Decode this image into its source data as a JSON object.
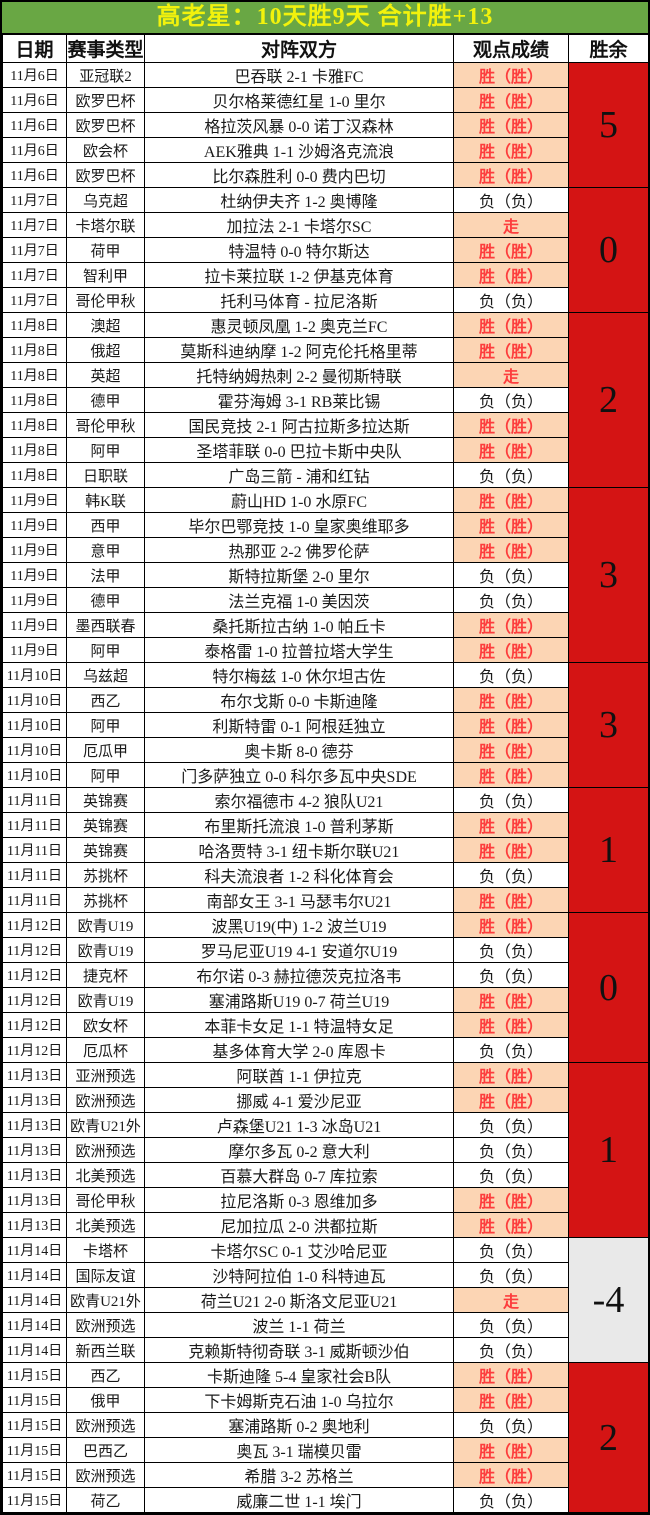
{
  "title": "高老星：10天胜9天  合计胜+13",
  "columns": [
    "日期",
    "赛事类型",
    "对阵双方",
    "观点成绩",
    "胜余"
  ],
  "colors": {
    "title_bg": "#69a744",
    "title_text": "#f2f20c",
    "win_cell_bg": "#fcd5b4",
    "win_cell_text": "#fd3d3d",
    "loss_cell_text": "#1a1a1a",
    "net_positive_bg": "#d41414",
    "net_negative_bg": "#e9e9e9",
    "border": "#000000"
  },
  "groups": [
    {
      "net": "5",
      "net_style": "red",
      "rows": [
        {
          "date": "11月6日",
          "league": "亚冠联2",
          "match": "巴吞联 2-1 卡雅FC",
          "result": "胜（胜）",
          "style": "win"
        },
        {
          "date": "11月6日",
          "league": "欧罗巴杯",
          "match": "贝尔格莱德红星 1-0 里尔",
          "result": "胜（胜）",
          "style": "win"
        },
        {
          "date": "11月6日",
          "league": "欧罗巴杯",
          "match": "格拉茨风暴 0-0 诺丁汉森林",
          "result": "胜（胜）",
          "style": "win"
        },
        {
          "date": "11月6日",
          "league": "欧会杯",
          "match": "AEK雅典 1-1 沙姆洛克流浪",
          "result": "胜（胜）",
          "style": "win"
        },
        {
          "date": "11月6日",
          "league": "欧罗巴杯",
          "match": "比尔森胜利 0-0 费内巴切",
          "result": "胜（胜）",
          "style": "win"
        }
      ]
    },
    {
      "net": "0",
      "net_style": "red",
      "rows": [
        {
          "date": "11月7日",
          "league": "乌克超",
          "match": "杜纳伊夫齐 1-2 奥博隆",
          "result": "负（负）",
          "style": "loss"
        },
        {
          "date": "11月7日",
          "league": "卡塔尔联",
          "match": "加拉法 2-1 卡塔尔SC",
          "result": "走",
          "style": "push"
        },
        {
          "date": "11月7日",
          "league": "荷甲",
          "match": "特温特 0-0 特尔斯达",
          "result": "胜（胜）",
          "style": "win"
        },
        {
          "date": "11月7日",
          "league": "智利甲",
          "match": "拉卡莱拉联 1-2 伊基克体育",
          "result": "胜（胜）",
          "style": "win"
        },
        {
          "date": "11月7日",
          "league": "哥伦甲秋",
          "match": "托利马体育 - 拉尼洛斯",
          "result": "负（负）",
          "style": "loss"
        }
      ]
    },
    {
      "net": "2",
      "net_style": "red",
      "rows": [
        {
          "date": "11月8日",
          "league": "澳超",
          "match": "惠灵顿凤凰 1-2 奥克兰FC",
          "result": "胜（胜）",
          "style": "win"
        },
        {
          "date": "11月8日",
          "league": "俄超",
          "match": "莫斯科迪纳摩 1-2 阿克伦托格里蒂",
          "result": "胜（胜）",
          "style": "win"
        },
        {
          "date": "11月8日",
          "league": "英超",
          "match": "托特纳姆热刺 2-2 曼彻斯特联",
          "result": "走",
          "style": "push"
        },
        {
          "date": "11月8日",
          "league": "德甲",
          "match": "霍芬海姆 3-1 RB莱比锡",
          "result": "负（负）",
          "style": "loss"
        },
        {
          "date": "11月8日",
          "league": "哥伦甲秋",
          "match": "国民竞技 2-1 阿古拉斯多拉达斯",
          "result": "胜（胜）",
          "style": "win"
        },
        {
          "date": "11月8日",
          "league": "阿甲",
          "match": "圣塔菲联 0-0 巴拉卡斯中央队",
          "result": "胜（胜）",
          "style": "win"
        },
        {
          "date": "11月8日",
          "league": "日职联",
          "match": "广岛三箭 - 浦和红钻",
          "result": "负（负）",
          "style": "loss"
        }
      ]
    },
    {
      "net": "3",
      "net_style": "red",
      "rows": [
        {
          "date": "11月9日",
          "league": "韩K联",
          "match": "蔚山HD 1-0 水原FC",
          "result": "胜（胜）",
          "style": "win"
        },
        {
          "date": "11月9日",
          "league": "西甲",
          "match": "毕尔巴鄂竞技 1-0 皇家奥维耶多",
          "result": "胜（胜）",
          "style": "win"
        },
        {
          "date": "11月9日",
          "league": "意甲",
          "match": "热那亚 2-2 佛罗伦萨",
          "result": "胜（胜）",
          "style": "win"
        },
        {
          "date": "11月9日",
          "league": "法甲",
          "match": "斯特拉斯堡 2-0 里尔",
          "result": "负（负）",
          "style": "loss"
        },
        {
          "date": "11月9日",
          "league": "德甲",
          "match": "法兰克福 1-0 美因茨",
          "result": "负（负）",
          "style": "loss"
        },
        {
          "date": "11月9日",
          "league": "墨西联春",
          "match": "桑托斯拉古纳 1-0 帕丘卡",
          "result": "胜（胜）",
          "style": "win"
        },
        {
          "date": "11月9日",
          "league": "阿甲",
          "match": "泰格雷 1-0 拉普拉塔大学生",
          "result": "胜（胜）",
          "style": "win"
        }
      ]
    },
    {
      "net": "3",
      "net_style": "red",
      "rows": [
        {
          "date": "11月10日",
          "league": "乌兹超",
          "match": "特尔梅兹 1-0 休尔坦古佐",
          "result": "负（负）",
          "style": "loss"
        },
        {
          "date": "11月10日",
          "league": "西乙",
          "match": "布尔戈斯 0-0 卡斯迪隆",
          "result": "胜（胜）",
          "style": "win"
        },
        {
          "date": "11月10日",
          "league": "阿甲",
          "match": "利斯特雷 0-1 阿根廷独立",
          "result": "胜（胜）",
          "style": "win"
        },
        {
          "date": "11月10日",
          "league": "厄瓜甲",
          "match": "奥卡斯 8-0 德芬",
          "result": "胜（胜）",
          "style": "win"
        },
        {
          "date": "11月10日",
          "league": "阿甲",
          "match": "门多萨独立 0-0 科尔多瓦中央SDE",
          "result": "胜（胜）",
          "style": "win"
        }
      ]
    },
    {
      "net": "1",
      "net_style": "red",
      "rows": [
        {
          "date": "11月11日",
          "league": "英锦赛",
          "match": "索尔福德市 4-2 狼队U21",
          "result": "负（负）",
          "style": "loss"
        },
        {
          "date": "11月11日",
          "league": "英锦赛",
          "match": "布里斯托流浪 1-0 普利茅斯",
          "result": "胜（胜）",
          "style": "win"
        },
        {
          "date": "11月11日",
          "league": "英锦赛",
          "match": "哈洛贾特 3-1 纽卡斯尔联U21",
          "result": "胜（胜）",
          "style": "win"
        },
        {
          "date": "11月11日",
          "league": "苏挑杯",
          "match": "科夫流浪者 1-2 科化体育会",
          "result": "负（负）",
          "style": "loss"
        },
        {
          "date": "11月11日",
          "league": "苏挑杯",
          "match": "南部女王 3-1 马瑟韦尔U21",
          "result": "胜（胜）",
          "style": "win"
        }
      ]
    },
    {
      "net": "0",
      "net_style": "red",
      "rows": [
        {
          "date": "11月12日",
          "league": "欧青U19",
          "match": "波黑U19(中) 1-2 波兰U19",
          "result": "胜（胜）",
          "style": "win"
        },
        {
          "date": "11月12日",
          "league": "欧青U19",
          "match": "罗马尼亚U19 4-1 安道尔U19",
          "result": "负（负）",
          "style": "loss"
        },
        {
          "date": "11月12日",
          "league": "捷克杯",
          "match": "布尔诺 0-3 赫拉德茨克拉洛韦",
          "result": "负（负）",
          "style": "loss"
        },
        {
          "date": "11月12日",
          "league": "欧青U19",
          "match": "塞浦路斯U19 0-7 荷兰U19",
          "result": "胜（胜）",
          "style": "win"
        },
        {
          "date": "11月12日",
          "league": "欧女杯",
          "match": "本菲卡女足 1-1 特温特女足",
          "result": "胜（胜）",
          "style": "win"
        },
        {
          "date": "11月12日",
          "league": "厄瓜杯",
          "match": "基多体育大学 2-0 库恩卡",
          "result": "负（负）",
          "style": "loss"
        }
      ]
    },
    {
      "net": "1",
      "net_style": "red",
      "rows": [
        {
          "date": "11月13日",
          "league": "亚洲预选",
          "match": "阿联酋 1-1 伊拉克",
          "result": "胜（胜）",
          "style": "win"
        },
        {
          "date": "11月13日",
          "league": "欧洲预选",
          "match": "挪威 4-1 爱沙尼亚",
          "result": "胜（胜）",
          "style": "win"
        },
        {
          "date": "11月13日",
          "league": "欧青U21外",
          "match": "卢森堡U21 1-3 冰岛U21",
          "result": "负（负）",
          "style": "loss"
        },
        {
          "date": "11月13日",
          "league": "欧洲预选",
          "match": "摩尔多瓦 0-2 意大利",
          "result": "负（负）",
          "style": "loss"
        },
        {
          "date": "11月13日",
          "league": "北美预选",
          "match": "百慕大群岛 0-7 库拉索",
          "result": "负（负）",
          "style": "loss"
        },
        {
          "date": "11月13日",
          "league": "哥伦甲秋",
          "match": "拉尼洛斯 0-3 恩维加多",
          "result": "胜（胜）",
          "style": "win"
        },
        {
          "date": "11月13日",
          "league": "北美预选",
          "match": "尼加拉瓜 2-0 洪都拉斯",
          "result": "胜（胜）",
          "style": "win"
        }
      ]
    },
    {
      "net": "-4",
      "net_style": "gray",
      "rows": [
        {
          "date": "11月14日",
          "league": "卡塔杯",
          "match": "卡塔尔SC 0-1 艾沙哈尼亚",
          "result": "负（负）",
          "style": "loss"
        },
        {
          "date": "11月14日",
          "league": "国际友谊",
          "match": "沙特阿拉伯 1-0 科特迪瓦",
          "result": "负（负）",
          "style": "loss"
        },
        {
          "date": "11月14日",
          "league": "欧青U21外",
          "match": "荷兰U21 2-0 斯洛文尼亚U21",
          "result": "走",
          "style": "push"
        },
        {
          "date": "11月14日",
          "league": "欧洲预选",
          "match": "波兰 1-1 荷兰",
          "result": "负（负）",
          "style": "loss"
        },
        {
          "date": "11月14日",
          "league": "新西兰联",
          "match": "克赖斯特彻奇联 3-1 威斯顿沙伯",
          "result": "负（负）",
          "style": "loss"
        }
      ]
    },
    {
      "net": "2",
      "net_style": "red",
      "rows": [
        {
          "date": "11月15日",
          "league": "西乙",
          "match": "卡斯迪隆 5-4 皇家社会B队",
          "result": "胜（胜）",
          "style": "win"
        },
        {
          "date": "11月15日",
          "league": "俄甲",
          "match": "下卡姆斯克石油 1-0 乌拉尔",
          "result": "胜（胜）",
          "style": "win"
        },
        {
          "date": "11月15日",
          "league": "欧洲预选",
          "match": "塞浦路斯 0-2 奥地利",
          "result": "负（负）",
          "style": "loss"
        },
        {
          "date": "11月15日",
          "league": "巴西乙",
          "match": "奥瓦 3-1 瑞模贝雷",
          "result": "胜（胜）",
          "style": "win"
        },
        {
          "date": "11月15日",
          "league": "欧洲预选",
          "match": "希腊 3-2 苏格兰",
          "result": "胜（胜）",
          "style": "win"
        },
        {
          "date": "11月15日",
          "league": "荷乙",
          "match": "威廉二世 1-1 埃门",
          "result": "负（负）",
          "style": "loss"
        }
      ]
    }
  ]
}
